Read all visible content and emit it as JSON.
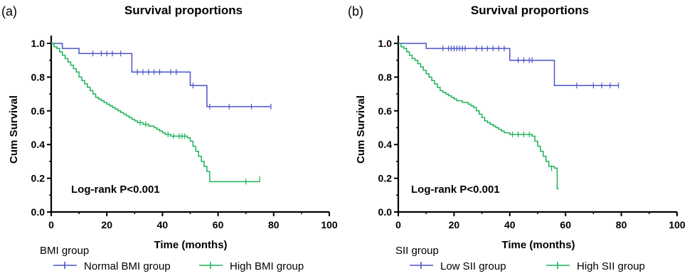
{
  "chart_data": [
    {
      "type": "line",
      "panel_label": "(a)",
      "title": "Survival proportions",
      "xlabel": "Time (months)",
      "ylabel": "Cum Survival",
      "xlim": [
        0,
        100
      ],
      "ylim": [
        0,
        1.0
      ],
      "x_ticks": [
        "0",
        "20",
        "40",
        "60",
        "80",
        "100"
      ],
      "y_ticks": [
        "0.0",
        "0.2",
        "0.4",
        "0.6",
        "0.8",
        "1.0"
      ],
      "annotation": "Log-rank P<0.001",
      "legend": {
        "title": "BMI group",
        "placement": "bottom",
        "entries": [
          {
            "label": "Normal BMI group",
            "color": "#4a55c8"
          },
          {
            "label": "High BMI group",
            "color": "#1fb25a"
          }
        ]
      },
      "series": [
        {
          "name": "Normal BMI group",
          "color": "#4a55c8",
          "steps": [
            [
              0,
              1.0
            ],
            [
              4,
              0.97
            ],
            [
              10,
              0.94
            ],
            [
              29,
              0.83
            ],
            [
              50,
              0.75
            ],
            [
              56,
              0.625
            ],
            [
              79,
              0.625
            ]
          ],
          "censors": [
            [
              15,
              0.94
            ],
            [
              18,
              0.94
            ],
            [
              20,
              0.94
            ],
            [
              22,
              0.94
            ],
            [
              25,
              0.94
            ],
            [
              31,
              0.83
            ],
            [
              33,
              0.83
            ],
            [
              35,
              0.83
            ],
            [
              37,
              0.83
            ],
            [
              39,
              0.83
            ],
            [
              43,
              0.83
            ],
            [
              45,
              0.83
            ],
            [
              51,
              0.75
            ],
            [
              57,
              0.625
            ],
            [
              64,
              0.625
            ],
            [
              72,
              0.625
            ],
            [
              79,
              0.625
            ]
          ]
        },
        {
          "name": "High BMI group",
          "color": "#1fb25a",
          "steps": [
            [
              0,
              1.0
            ],
            [
              1,
              0.98
            ],
            [
              2,
              0.97
            ],
            [
              3,
              0.95
            ],
            [
              4,
              0.93
            ],
            [
              5,
              0.91
            ],
            [
              6,
              0.89
            ],
            [
              7,
              0.87
            ],
            [
              8,
              0.85
            ],
            [
              9,
              0.83
            ],
            [
              10,
              0.8
            ],
            [
              11,
              0.78
            ],
            [
              12,
              0.76
            ],
            [
              13,
              0.74
            ],
            [
              14,
              0.72
            ],
            [
              15,
              0.7
            ],
            [
              16,
              0.68
            ],
            [
              17,
              0.67
            ],
            [
              18,
              0.66
            ],
            [
              19,
              0.65
            ],
            [
              20,
              0.64
            ],
            [
              21,
              0.63
            ],
            [
              22,
              0.62
            ],
            [
              23,
              0.61
            ],
            [
              24,
              0.6
            ],
            [
              25,
              0.59
            ],
            [
              26,
              0.58
            ],
            [
              27,
              0.57
            ],
            [
              28,
              0.56
            ],
            [
              29,
              0.55
            ],
            [
              30,
              0.54
            ],
            [
              31,
              0.53
            ],
            [
              33,
              0.52
            ],
            [
              35,
              0.51
            ],
            [
              37,
              0.5
            ],
            [
              38,
              0.49
            ],
            [
              39,
              0.48
            ],
            [
              40,
              0.47
            ],
            [
              41,
              0.46
            ],
            [
              43,
              0.45
            ],
            [
              49,
              0.44
            ],
            [
              50,
              0.42
            ],
            [
              51,
              0.39
            ],
            [
              52,
              0.36
            ],
            [
              53,
              0.33
            ],
            [
              54,
              0.3
            ],
            [
              55,
              0.27
            ],
            [
              56,
              0.24
            ],
            [
              57,
              0.18
            ],
            [
              75,
              0.18
            ]
          ],
          "censors": [
            [
              32,
              0.53
            ],
            [
              34,
              0.52
            ],
            [
              42,
              0.46
            ],
            [
              44,
              0.45
            ],
            [
              46,
              0.45
            ],
            [
              47,
              0.45
            ],
            [
              48,
              0.45
            ],
            [
              70,
              0.18
            ],
            [
              75,
              0.195
            ]
          ]
        }
      ]
    },
    {
      "type": "line",
      "panel_label": "(b)",
      "title": "Survival proportions",
      "xlabel": "Time (months)",
      "ylabel": "Cum Survival",
      "xlim": [
        0,
        100
      ],
      "ylim": [
        0,
        1.0
      ],
      "x_ticks": [
        "0",
        "20",
        "40",
        "60",
        "80",
        "100"
      ],
      "y_ticks": [
        "0.0",
        "0.2",
        "0.4",
        "0.6",
        "0.8",
        "1.0"
      ],
      "annotation": "Log-rank P<0.001",
      "legend": {
        "title": "SII group",
        "placement": "bottom",
        "entries": [
          {
            "label": "Low SII group",
            "color": "#4a55c8"
          },
          {
            "label": "High SII group",
            "color": "#1fb25a"
          }
        ]
      },
      "series": [
        {
          "name": "Low SII group",
          "color": "#4a55c8",
          "steps": [
            [
              0,
              1.0
            ],
            [
              10,
              0.97
            ],
            [
              40,
              0.9
            ],
            [
              56,
              0.75
            ],
            [
              79,
              0.75
            ]
          ],
          "censors": [
            [
              16,
              0.97
            ],
            [
              18,
              0.97
            ],
            [
              19,
              0.97
            ],
            [
              20,
              0.97
            ],
            [
              21,
              0.97
            ],
            [
              22,
              0.97
            ],
            [
              23,
              0.97
            ],
            [
              24,
              0.97
            ],
            [
              28,
              0.97
            ],
            [
              30,
              0.97
            ],
            [
              32,
              0.97
            ],
            [
              34,
              0.97
            ],
            [
              36,
              0.97
            ],
            [
              38,
              0.97
            ],
            [
              43,
              0.9
            ],
            [
              45,
              0.9
            ],
            [
              47,
              0.9
            ],
            [
              48,
              0.9
            ],
            [
              64,
              0.75
            ],
            [
              70,
              0.75
            ],
            [
              73,
              0.75
            ],
            [
              76,
              0.75
            ],
            [
              79,
              0.75
            ]
          ]
        },
        {
          "name": "High SII group",
          "color": "#1fb25a",
          "steps": [
            [
              0,
              1.0
            ],
            [
              1,
              0.98
            ],
            [
              2,
              0.97
            ],
            [
              3,
              0.95
            ],
            [
              4,
              0.93
            ],
            [
              5,
              0.91
            ],
            [
              6,
              0.9
            ],
            [
              7,
              0.88
            ],
            [
              8,
              0.86
            ],
            [
              9,
              0.84
            ],
            [
              10,
              0.82
            ],
            [
              11,
              0.8
            ],
            [
              12,
              0.78
            ],
            [
              13,
              0.76
            ],
            [
              14,
              0.74
            ],
            [
              15,
              0.72
            ],
            [
              16,
              0.71
            ],
            [
              17,
              0.7
            ],
            [
              18,
              0.69
            ],
            [
              19,
              0.68
            ],
            [
              20,
              0.67
            ],
            [
              21,
              0.66
            ],
            [
              23,
              0.65
            ],
            [
              25,
              0.64
            ],
            [
              26,
              0.63
            ],
            [
              27,
              0.62
            ],
            [
              28,
              0.6
            ],
            [
              29,
              0.58
            ],
            [
              30,
              0.56
            ],
            [
              31,
              0.54
            ],
            [
              32,
              0.53
            ],
            [
              33,
              0.52
            ],
            [
              34,
              0.51
            ],
            [
              35,
              0.5
            ],
            [
              36,
              0.49
            ],
            [
              37,
              0.48
            ],
            [
              38,
              0.47
            ],
            [
              40,
              0.46
            ],
            [
              48,
              0.45
            ],
            [
              49,
              0.42
            ],
            [
              50,
              0.39
            ],
            [
              51,
              0.36
            ],
            [
              52,
              0.33
            ],
            [
              53,
              0.3
            ],
            [
              54,
              0.27
            ],
            [
              56,
              0.26
            ],
            [
              57,
              0.14
            ],
            [
              57.5,
              0.14
            ]
          ],
          "censors": [
            [
              41,
              0.46
            ],
            [
              43,
              0.46
            ],
            [
              45,
              0.46
            ],
            [
              47,
              0.46
            ],
            [
              55,
              0.26
            ],
            [
              57,
              0.15
            ]
          ]
        }
      ]
    }
  ]
}
